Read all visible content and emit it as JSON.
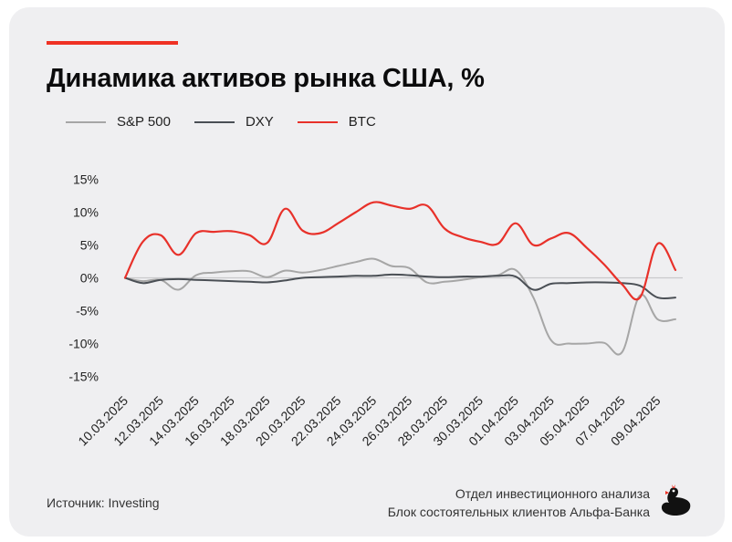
{
  "header": {
    "title": "Динамика активов рынка США, %"
  },
  "footer": {
    "source": "Источник: Investing",
    "credit_line1": "Отдел инвестиционного анализа",
    "credit_line2": "Блок состоятельных клиентов Альфа-Банка"
  },
  "colors": {
    "accent": "#ef3124",
    "sp500": "#a6a6a6",
    "dxy": "#4a4f55",
    "btc": "#e8312a"
  },
  "chart_data": {
    "type": "line",
    "title": "Динамика активов рынка США, %",
    "xlabel": "",
    "ylabel": "",
    "ylim": [
      -15,
      15
    ],
    "y_ticks": [
      "15%",
      "10%",
      "5%",
      "0%",
      "-5%",
      "-10%",
      "-15%"
    ],
    "y_tick_values": [
      15,
      10,
      5,
      0,
      -5,
      -10,
      -15
    ],
    "x_tick_labels": [
      "10.03.2025",
      "12.03.2025",
      "14.03.2025",
      "16.03.2025",
      "18.03.2025",
      "20.03.2025",
      "22.03.2025",
      "24.03.2025",
      "26.03.2025",
      "28.03.2025",
      "30.03.2025",
      "01.04.2025",
      "03.04.2025",
      "05.04.2025",
      "07.04.2025",
      "09.04.2025"
    ],
    "x": [
      "10.03.2025",
      "11.03.2025",
      "12.03.2025",
      "13.03.2025",
      "14.03.2025",
      "15.03.2025",
      "16.03.2025",
      "17.03.2025",
      "18.03.2025",
      "19.03.2025",
      "20.03.2025",
      "21.03.2025",
      "22.03.2025",
      "23.03.2025",
      "24.03.2025",
      "25.03.2025",
      "26.03.2025",
      "27.03.2025",
      "28.03.2025",
      "29.03.2025",
      "30.03.2025",
      "31.03.2025",
      "01.04.2025",
      "02.04.2025",
      "03.04.2025",
      "04.04.2025",
      "05.04.2025",
      "06.04.2025",
      "07.04.2025",
      "08.04.2025",
      "09.04.2025",
      "10.04.2025"
    ],
    "legend_position": "top-left",
    "series": [
      {
        "name": "S&P 500",
        "color": "#a6a6a6",
        "values": [
          0,
          -0.5,
          -0.3,
          -1.8,
          0.4,
          0.8,
          1.0,
          1.0,
          0.1,
          1.1,
          0.8,
          1.2,
          1.8,
          2.4,
          2.9,
          1.8,
          1.5,
          -0.7,
          -0.6,
          -0.3,
          0.1,
          0.4,
          1.2,
          -3.0,
          -9.5,
          -10.0,
          -10.0,
          -9.9,
          -11.3,
          -2.7,
          -6.3,
          -6.3
        ]
      },
      {
        "name": "DXY",
        "color": "#4a4f55",
        "values": [
          0,
          -0.8,
          -0.3,
          -0.2,
          -0.3,
          -0.4,
          -0.5,
          -0.6,
          -0.7,
          -0.4,
          0.0,
          0.1,
          0.2,
          0.3,
          0.3,
          0.5,
          0.4,
          0.2,
          0.1,
          0.2,
          0.2,
          0.3,
          0.2,
          -1.8,
          -0.9,
          -0.8,
          -0.7,
          -0.7,
          -0.8,
          -1.2,
          -3.0,
          -3.0
        ]
      },
      {
        "name": "BTC",
        "color": "#e8312a",
        "values": [
          0,
          5.5,
          6.5,
          3.5,
          6.8,
          7.0,
          7.1,
          6.5,
          5.3,
          10.5,
          7.2,
          6.8,
          8.3,
          10.0,
          11.5,
          11.0,
          10.5,
          11.0,
          7.5,
          6.2,
          5.5,
          5.2,
          8.3,
          5.0,
          6.0,
          6.8,
          4.6,
          2.0,
          -1.0,
          -3.0,
          5.2,
          1.2
        ]
      }
    ]
  }
}
